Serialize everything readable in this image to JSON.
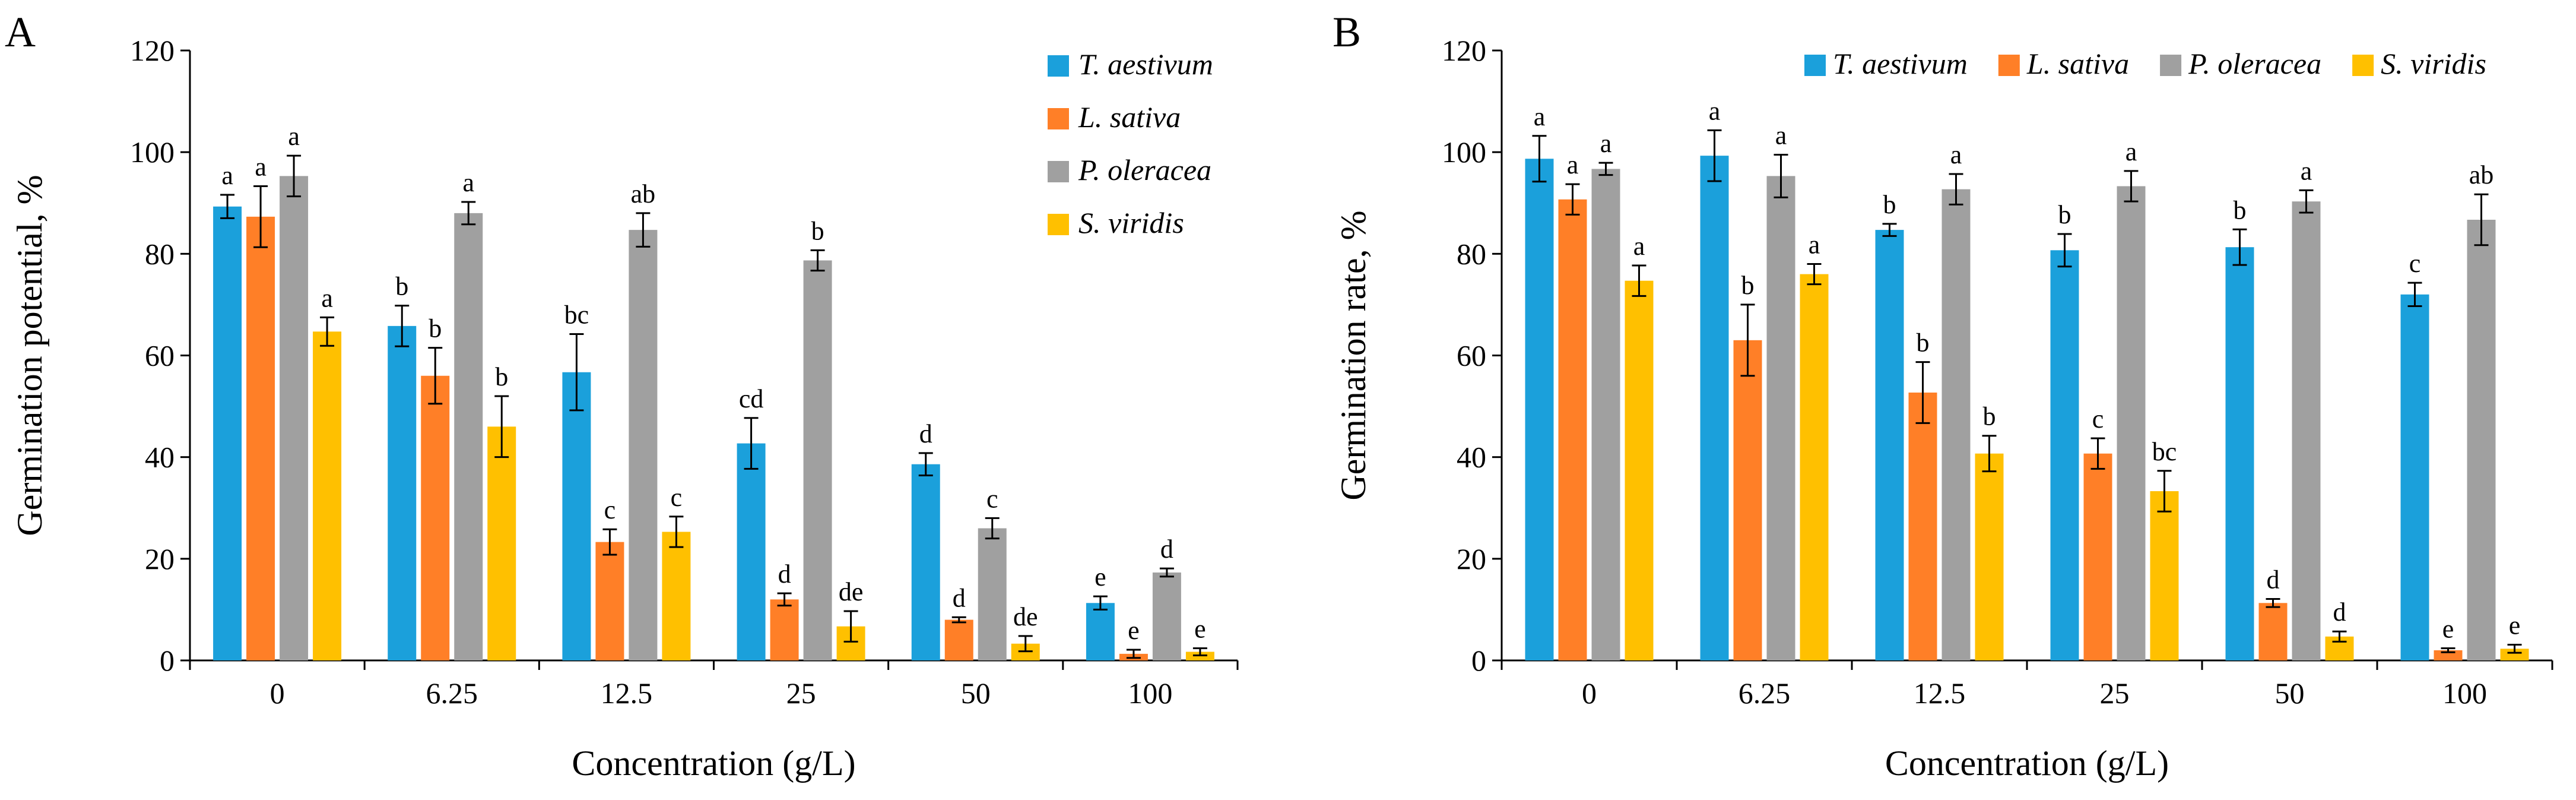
{
  "chart_data": [
    {
      "type": "bar",
      "panel_label": "A",
      "ylabel": "Germination potential, %",
      "xlabel": "Concentration (g/L)",
      "ylim": [
        0,
        120
      ],
      "yticks": [
        0,
        20,
        40,
        60,
        80,
        100,
        120
      ],
      "categories": [
        "0",
        "6.25",
        "12.5",
        "25",
        "50",
        "100"
      ],
      "legend_position": "top-right-vertical",
      "series": [
        {
          "name": "T. aestivum",
          "color": "#1BA0DB",
          "values": [
            89.3,
            65.8,
            56.7,
            42.7,
            38.6,
            11.3
          ],
          "errors": [
            2.3,
            4.0,
            7.5,
            5.0,
            2.2,
            1.3
          ],
          "labels": [
            "a",
            "b",
            "bc",
            "cd",
            "d",
            "e"
          ]
        },
        {
          "name": "L. sativa",
          "color": "#FF7F27",
          "values": [
            87.3,
            56.0,
            23.3,
            12.0,
            8.0,
            1.3
          ],
          "errors": [
            6.0,
            5.5,
            2.5,
            1.2,
            0.5,
            0.8
          ],
          "labels": [
            "a",
            "b",
            "c",
            "d",
            "d",
            "e"
          ]
        },
        {
          "name": "P. oleracea",
          "color": "#A0A0A0",
          "values": [
            95.3,
            88.0,
            84.7,
            78.7,
            26.0,
            17.3
          ],
          "errors": [
            4.0,
            2.2,
            3.3,
            2.0,
            2.0,
            0.8
          ],
          "labels": [
            "a",
            "a",
            "ab",
            "b",
            "c",
            "d"
          ]
        },
        {
          "name": "S. viridis",
          "color": "#FFC000",
          "values": [
            64.7,
            46.0,
            25.3,
            6.7,
            3.3,
            1.7
          ],
          "errors": [
            2.8,
            6.0,
            3.0,
            3.0,
            1.5,
            0.7
          ],
          "labels": [
            "a",
            "b",
            "c",
            "de",
            "de",
            "e"
          ]
        }
      ]
    },
    {
      "type": "bar",
      "panel_label": "B",
      "ylabel": "Germination rate, %",
      "xlabel": "Concentration (g/L)",
      "ylim": [
        0,
        120
      ],
      "yticks": [
        0,
        20,
        40,
        60,
        80,
        100,
        120
      ],
      "categories": [
        "0",
        "6.25",
        "12.5",
        "25",
        "50",
        "100"
      ],
      "legend_position": "top-horizontal",
      "series": [
        {
          "name": "T. aestivum",
          "color": "#1BA0DB",
          "values": [
            98.7,
            99.3,
            84.7,
            80.7,
            81.3,
            72.0
          ],
          "errors": [
            4.5,
            5.0,
            1.2,
            3.2,
            3.5,
            2.3
          ],
          "labels": [
            "a",
            "a",
            "b",
            "b",
            "b",
            "c"
          ]
        },
        {
          "name": "L. sativa",
          "color": "#FF7F27",
          "values": [
            90.7,
            63.0,
            52.7,
            40.7,
            11.3,
            2.0
          ],
          "errors": [
            3.0,
            7.0,
            6.0,
            3.0,
            0.8,
            0.4
          ],
          "labels": [
            "a",
            "b",
            "b",
            "c",
            "d",
            "e"
          ]
        },
        {
          "name": "P. oleracea",
          "color": "#A0A0A0",
          "values": [
            96.7,
            95.3,
            92.7,
            93.3,
            90.3,
            86.7
          ],
          "errors": [
            1.2,
            4.2,
            3.0,
            3.0,
            2.2,
            5.0
          ],
          "labels": [
            "a",
            "a",
            "a",
            "a",
            "a",
            "ab"
          ]
        },
        {
          "name": "S. viridis",
          "color": "#FFC000",
          "values": [
            74.7,
            76.0,
            40.7,
            33.3,
            4.7,
            2.3
          ],
          "errors": [
            3.0,
            2.0,
            3.5,
            4.0,
            1.0,
            0.8
          ],
          "labels": [
            "a",
            "a",
            "b",
            "bc",
            "d",
            "e"
          ]
        }
      ]
    }
  ]
}
